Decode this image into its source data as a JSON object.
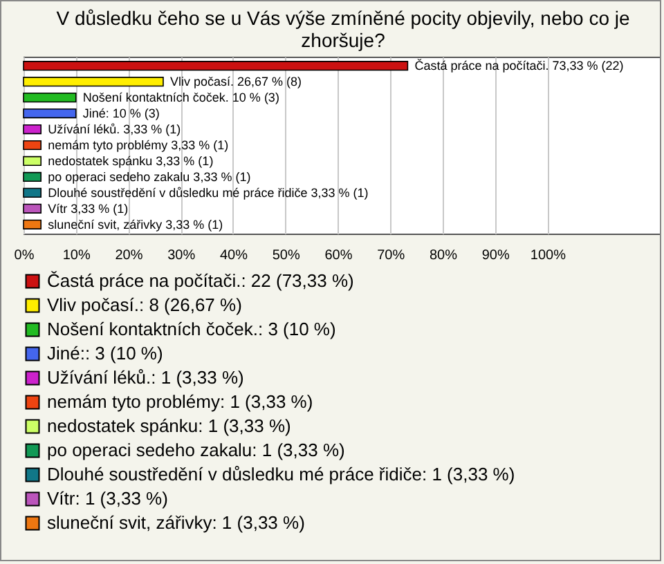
{
  "chart_data": {
    "type": "bar",
    "orientation": "horizontal",
    "stacked": true,
    "title": [
      "V důsledku čeho se u Vás výše zmíněné pocity objevily, nebo co je",
      "zhoršuje?"
    ],
    "categories": [
      null,
      null,
      null,
      null,
      null,
      null,
      null,
      null,
      null,
      null,
      null
    ],
    "series": [
      {
        "name": "Častá práce na počítači.: 22 (73,33 %)",
        "color": "#cc1111",
        "values": [
          73.33,
          null,
          null,
          null,
          null,
          null,
          null,
          null,
          null,
          null,
          null
        ],
        "value_labels": [
          "Častá práce na počítači. 73,33 % (22)",
          null,
          null,
          null,
          null,
          null,
          null,
          null,
          null,
          null,
          null
        ]
      },
      {
        "name": "Vliv počasí.: 8 (26,67 %)",
        "color": "#ffee00",
        "values": [
          null,
          26.67,
          null,
          null,
          null,
          null,
          null,
          null,
          null,
          null,
          null
        ],
        "value_labels": [
          null,
          "Vliv počasí. 26,67 % (8)",
          null,
          null,
          null,
          null,
          null,
          null,
          null,
          null,
          null
        ]
      },
      {
        "name": "Nošení kontaktních čoček.: 3 (10 %)",
        "color": "#22bb22",
        "values": [
          null,
          null,
          10,
          null,
          null,
          null,
          null,
          null,
          null,
          null,
          null
        ],
        "value_labels": [
          null,
          null,
          "Nošení kontaktních čoček. 10 % (3)",
          null,
          null,
          null,
          null,
          null,
          null,
          null,
          null
        ]
      },
      {
        "name": "Jiné:: 3 (10 %)",
        "color": "#4466ee",
        "values": [
          null,
          null,
          null,
          10,
          null,
          null,
          null,
          null,
          null,
          null,
          null
        ],
        "value_labels": [
          null,
          null,
          null,
          "Jiné: 10 % (3)",
          null,
          null,
          null,
          null,
          null,
          null,
          null
        ]
      },
      {
        "name": "Užívání léků.: 1 (3,33 %)",
        "color": "#cc22cc",
        "values": [
          null,
          null,
          null,
          null,
          3.33,
          null,
          null,
          null,
          null,
          null,
          null
        ],
        "value_labels": [
          null,
          null,
          null,
          null,
          "Užívání léků. 3,33 % (1)",
          null,
          null,
          null,
          null,
          null,
          null
        ]
      },
      {
        "name": "nemám tyto problémy: 1 (3,33 %)",
        "color": "#ee4411",
        "values": [
          null,
          null,
          null,
          null,
          null,
          3.33,
          null,
          null,
          null,
          null,
          null
        ],
        "value_labels": [
          null,
          null,
          null,
          null,
          null,
          "nemám tyto problémy 3,33 % (1)",
          null,
          null,
          null,
          null,
          null
        ]
      },
      {
        "name": "nedostatek spánku: 1 (3,33 %)",
        "color": "#ccff66",
        "values": [
          null,
          null,
          null,
          null,
          null,
          null,
          3.33,
          null,
          null,
          null,
          null
        ],
        "value_labels": [
          null,
          null,
          null,
          null,
          null,
          null,
          "nedostatek spánku 3,33 % (1)",
          null,
          null,
          null,
          null
        ]
      },
      {
        "name": "po operaci sedeho zakalu: 1 (3,33 %)",
        "color": "#119955",
        "values": [
          null,
          null,
          null,
          null,
          null,
          null,
          null,
          3.33,
          null,
          null,
          null
        ],
        "value_labels": [
          null,
          null,
          null,
          null,
          null,
          null,
          null,
          "po operaci sedeho zakalu 3,33 % (1)",
          null,
          null,
          null
        ]
      },
      {
        "name": "Dlouhé soustředění v důsledku mé práce řidiče: 1 (3,33 %)",
        "color": "#117788",
        "values": [
          null,
          null,
          null,
          null,
          null,
          null,
          null,
          null,
          3.33,
          null,
          null
        ],
        "value_labels": [
          null,
          null,
          null,
          null,
          null,
          null,
          null,
          null,
          "Dlouhé soustředění v důsledku mé práce řidiče 3,33 % (1)",
          null,
          null
        ]
      },
      {
        "name": "Vítr: 1 (3,33 %)",
        "color": "#bb55bb",
        "values": [
          null,
          null,
          null,
          null,
          null,
          null,
          null,
          null,
          null,
          3.33,
          null
        ],
        "value_labels": [
          null,
          null,
          null,
          null,
          null,
          null,
          null,
          null,
          null,
          "Vítr 3,33 % (1)",
          null
        ]
      },
      {
        "name": "sluneční svit, zářivky: 1 (3,33 %)",
        "color": "#ee7711",
        "values": [
          null,
          null,
          null,
          null,
          null,
          null,
          null,
          null,
          null,
          null,
          3.33
        ],
        "value_labels": [
          null,
          null,
          null,
          null,
          null,
          null,
          null,
          null,
          null,
          null,
          "sluneční svit, zářivky 3,33 % (1)"
        ]
      }
    ],
    "xlim": [
      0,
      122
    ],
    "xticks": [
      {
        "value": 0,
        "label": "0%"
      },
      {
        "value": 10,
        "label": "10%"
      },
      {
        "value": 20,
        "label": "20%"
      },
      {
        "value": 30,
        "label": "30%"
      },
      {
        "value": 40,
        "label": "40%"
      },
      {
        "value": 50,
        "label": "50%"
      },
      {
        "value": 60,
        "label": "60%"
      },
      {
        "value": 70,
        "label": "70%"
      },
      {
        "value": 80,
        "label": "80%"
      },
      {
        "value": 90,
        "label": "90%"
      },
      {
        "value": 100,
        "label": "100%"
      }
    ],
    "grid": "x",
    "legend": "bottom",
    "tick_labels": "x"
  }
}
